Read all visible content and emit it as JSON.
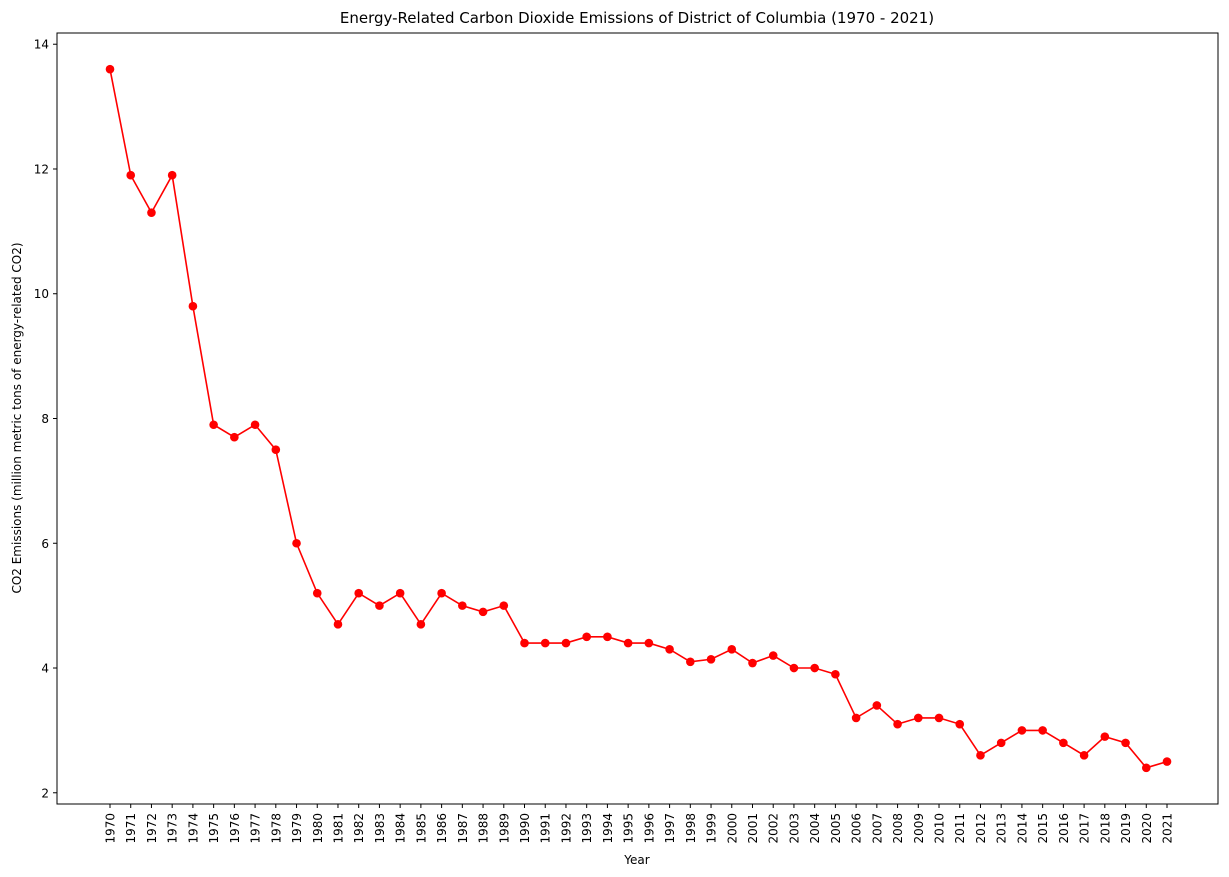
{
  "chart_data": {
    "type": "line",
    "title": "Energy-Related Carbon Dioxide Emissions of District of Columbia (1970 - 2021)",
    "xlabel": "Year",
    "ylabel": "CO2 Emissions (million metric tons of energy-related CO2)",
    "ylim": [
      1.82,
      14.18
    ],
    "yticks": [
      2,
      4,
      6,
      8,
      10,
      12,
      14
    ],
    "grid": false,
    "legend": "none",
    "series": [
      {
        "color": "#ff0000",
        "marker": "circle",
        "x": [
          "1970",
          "1971",
          "1972",
          "1973",
          "1974",
          "1975",
          "1976",
          "1977",
          "1978",
          "1979",
          "1980",
          "1981",
          "1982",
          "1983",
          "1984",
          "1985",
          "1986",
          "1987",
          "1988",
          "1989",
          "1990",
          "1991",
          "1992",
          "1993",
          "1994",
          "1995",
          "1996",
          "1997",
          "1998",
          "1999",
          "2000",
          "2001",
          "2002",
          "2003",
          "2004",
          "2005",
          "2006",
          "2007",
          "2008",
          "2009",
          "2010",
          "2011",
          "2012",
          "2013",
          "2014",
          "2015",
          "2016",
          "2017",
          "2018",
          "2019",
          "2020",
          "2021"
        ],
        "values": [
          13.6,
          11.9,
          11.3,
          11.9,
          9.8,
          7.9,
          7.7,
          7.9,
          7.5,
          6.0,
          5.2,
          4.7,
          5.2,
          5.0,
          5.2,
          4.7,
          5.2,
          5.0,
          4.9,
          5.0,
          4.4,
          4.4,
          4.4,
          4.5,
          4.5,
          4.4,
          4.4,
          4.3,
          4.1,
          4.14,
          4.3,
          4.08,
          4.2,
          4.0,
          4.0,
          3.9,
          3.2,
          3.4,
          3.1,
          3.2,
          3.2,
          3.1,
          2.6,
          2.8,
          3.0,
          3.0,
          2.8,
          2.6,
          2.9,
          2.8,
          2.4,
          2.5
        ]
      }
    ]
  }
}
